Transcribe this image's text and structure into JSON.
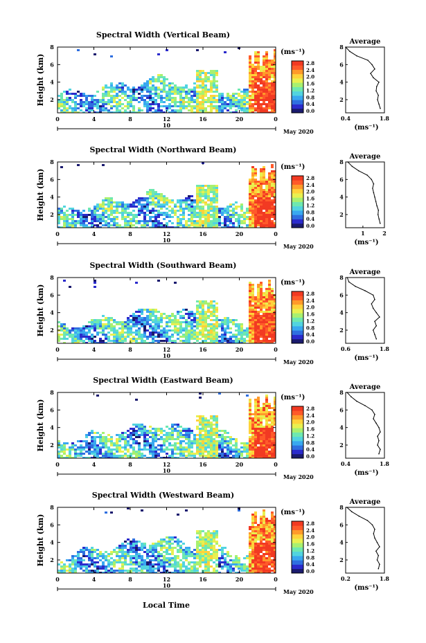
{
  "figure": {
    "xlabel_bottom": "Local Time",
    "date_label": "May 2020",
    "colorbar_unit": "(ms⁻¹)",
    "colorbar_ticks": [
      "2.8",
      "2.4",
      "2.0",
      "1.6",
      "1.2",
      "0.8",
      "0.4",
      "0.0"
    ],
    "colormap": [
      "#1a1a6e",
      "#2b2bcc",
      "#2f6fe0",
      "#39a8f0",
      "#52d4e0",
      "#6ee8b0",
      "#a8f070",
      "#e8f050",
      "#ffd23a",
      "#ff9a2a",
      "#ff5a2a",
      "#f23a22"
    ]
  },
  "chart_data": [
    {
      "type": "heatmap",
      "title": "Spectral Width (Vertical Beam)",
      "ylabel": "Height (km)",
      "xlabel": "",
      "x_ticks": [
        "0",
        "4",
        "8",
        "12",
        "16",
        "20",
        "0"
      ],
      "x_sub_label": "10",
      "xlim": [
        0,
        24
      ],
      "y_ticks": [
        "8",
        "6",
        "4",
        "2"
      ],
      "ylim": [
        0.5,
        8
      ],
      "colorbar": {
        "range": [
          0.0,
          2.8
        ],
        "unit": "(ms⁻¹)"
      },
      "profile": {
        "title": "Average",
        "x_ticks": [
          "0.4",
          "1.8"
        ],
        "xlim": [
          0.4,
          1.8
        ],
        "xlabel": "(ms⁻¹)",
        "y_ticks": [
          "8",
          "6",
          "4",
          "2"
        ],
        "height_km": [
          1.0,
          1.5,
          2.0,
          2.5,
          3.0,
          3.5,
          4.0,
          4.5,
          5.0,
          5.5,
          6.0,
          6.5,
          7.0,
          7.5,
          8.0
        ],
        "width_ms": [
          1.65,
          1.6,
          1.55,
          1.58,
          1.5,
          1.52,
          1.6,
          1.4,
          1.3,
          1.45,
          1.35,
          1.2,
          0.8,
          0.55,
          0.4
        ]
      }
    },
    {
      "type": "heatmap",
      "title": "Spectral Width (Northward Beam)",
      "ylabel": "Height (km)",
      "xlabel": "",
      "x_ticks": [
        "0",
        "4",
        "8",
        "12",
        "16",
        "20",
        "0"
      ],
      "x_sub_label": "10",
      "xlim": [
        0,
        24
      ],
      "y_ticks": [
        "8",
        "6",
        "4",
        "2"
      ],
      "ylim": [
        0.5,
        8
      ],
      "colorbar": {
        "range": [
          0.0,
          2.8
        ],
        "unit": "(ms⁻¹)"
      },
      "profile": {
        "title": "Average",
        "x_ticks": [
          "1",
          "2"
        ],
        "xlim": [
          0.2,
          2.0
        ],
        "xlabel": "(ms⁻¹)",
        "y_ticks": [
          "8",
          "6",
          "4",
          "2"
        ],
        "height_km": [
          1.0,
          1.5,
          2.0,
          2.5,
          3.0,
          3.5,
          4.0,
          4.5,
          5.0,
          5.5,
          6.0,
          6.5,
          7.0,
          7.5,
          8.0
        ],
        "width_ms": [
          1.8,
          1.75,
          1.7,
          1.72,
          1.65,
          1.6,
          1.55,
          1.5,
          1.45,
          1.5,
          1.4,
          1.2,
          0.8,
          0.5,
          0.3
        ]
      }
    },
    {
      "type": "heatmap",
      "title": "Spectral Width (Southward Beam)",
      "ylabel": "Height (km)",
      "xlabel": "",
      "x_ticks": [
        "0",
        "4",
        "8",
        "12",
        "16",
        "20",
        "0"
      ],
      "x_sub_label": "10",
      "xlim": [
        0,
        24
      ],
      "y_ticks": [
        "8",
        "6",
        "4",
        "2"
      ],
      "ylim": [
        0.5,
        8
      ],
      "colorbar": {
        "range": [
          0.0,
          2.8
        ],
        "unit": "(ms⁻¹)"
      },
      "profile": {
        "title": "Average",
        "x_ticks": [
          "0.6",
          "1.8"
        ],
        "xlim": [
          0.6,
          1.8
        ],
        "xlabel": "(ms⁻¹)",
        "y_ticks": [
          "8",
          "6",
          "4",
          "2"
        ],
        "height_km": [
          1.0,
          1.5,
          2.0,
          2.5,
          3.0,
          3.5,
          4.0,
          4.5,
          5.0,
          5.5,
          6.0,
          6.5,
          7.0,
          7.5,
          8.0
        ],
        "width_ms": [
          1.55,
          1.5,
          1.45,
          1.55,
          1.5,
          1.65,
          1.55,
          1.45,
          1.4,
          1.5,
          1.45,
          1.2,
          0.9,
          0.7,
          0.65
        ]
      }
    },
    {
      "type": "heatmap",
      "title": "Spectral Width (Eastward Beam)",
      "ylabel": "Height (km)",
      "xlabel": "",
      "x_ticks": [
        "0",
        "4",
        "8",
        "12",
        "16",
        "20",
        "0"
      ],
      "x_sub_label": "10",
      "xlim": [
        0,
        24
      ],
      "y_ticks": [
        "8",
        "6",
        "4",
        "2"
      ],
      "ylim": [
        0.5,
        8
      ],
      "colorbar": {
        "range": [
          0.0,
          2.8
        ],
        "unit": "(ms⁻¹)"
      },
      "profile": {
        "title": "Average",
        "x_ticks": [
          "0.4",
          "1.8"
        ],
        "xlim": [
          0.4,
          1.8
        ],
        "xlabel": "(ms⁻¹)",
        "y_ticks": [
          "8",
          "6",
          "4",
          "2"
        ],
        "height_km": [
          1.0,
          1.5,
          2.0,
          2.5,
          3.0,
          3.5,
          4.0,
          4.5,
          5.0,
          5.5,
          6.0,
          6.5,
          7.0,
          7.5,
          8.0
        ],
        "width_ms": [
          1.6,
          1.65,
          1.55,
          1.6,
          1.55,
          1.65,
          1.6,
          1.5,
          1.4,
          1.45,
          1.35,
          1.1,
          0.8,
          0.6,
          0.45
        ]
      }
    },
    {
      "type": "heatmap",
      "title": "Spectral Width (Westward Beam)",
      "ylabel": "Height (km)",
      "xlabel": "Local Time",
      "x_ticks": [
        "0",
        "4",
        "8",
        "12",
        "16",
        "20",
        "0"
      ],
      "x_sub_label": "10",
      "xlim": [
        0,
        24
      ],
      "y_ticks": [
        "8",
        "6",
        "4",
        "2"
      ],
      "ylim": [
        0.5,
        8
      ],
      "colorbar": {
        "range": [
          0.0,
          2.8
        ],
        "unit": "(ms⁻¹)"
      },
      "profile": {
        "title": "Average",
        "x_ticks": [
          "0.2",
          "1.8"
        ],
        "xlim": [
          0.2,
          1.8
        ],
        "xlabel": "(ms⁻¹)",
        "y_ticks": [
          "8",
          "6",
          "4",
          "2"
        ],
        "height_km": [
          1.0,
          1.5,
          2.0,
          2.5,
          3.0,
          3.5,
          4.0,
          4.5,
          5.0,
          5.5,
          6.0,
          6.5,
          7.0,
          7.5,
          8.0
        ],
        "width_ms": [
          1.55,
          1.6,
          1.5,
          1.55,
          1.45,
          1.6,
          1.5,
          1.4,
          1.35,
          1.4,
          1.3,
          1.1,
          0.75,
          0.45,
          0.25
        ]
      }
    }
  ]
}
